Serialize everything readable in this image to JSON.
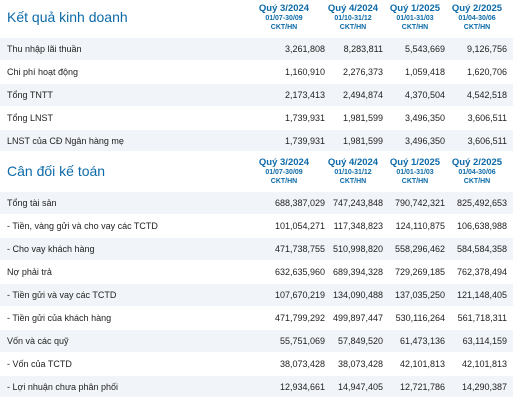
{
  "kqkd": {
    "title": "Kết quả kinh doanh",
    "columns": [
      {
        "quarter": "Quý 3/2024",
        "dates": "01/07-30/09",
        "unit": "CKT/HN"
      },
      {
        "quarter": "Quý 4/2024",
        "dates": "01/10-31/12",
        "unit": "CKT/HN"
      },
      {
        "quarter": "Quý 1/2025",
        "dates": "01/01-31/03",
        "unit": "CKT/HN"
      },
      {
        "quarter": "Quý 2/2025",
        "dates": "01/04-30/06",
        "unit": "CKT/HN"
      }
    ],
    "rows": [
      {
        "label": "Thu nhập lãi thuần",
        "values": [
          "3,261,808",
          "8,283,811",
          "5,543,669",
          "9,126,756"
        ]
      },
      {
        "label": "Chi phí hoạt động",
        "values": [
          "1,160,910",
          "2,276,373",
          "1,059,418",
          "1,620,706"
        ]
      },
      {
        "label": "Tổng TNTT",
        "values": [
          "2,173,413",
          "2,494,874",
          "4,370,504",
          "4,542,518"
        ]
      },
      {
        "label": "Tổng LNST",
        "values": [
          "1,739,931",
          "1,981,599",
          "3,496,350",
          "3,606,511"
        ]
      },
      {
        "label": "LNST của CĐ Ngân hàng mẹ",
        "values": [
          "1,739,931",
          "1,981,599",
          "3,496,350",
          "3,606,511"
        ]
      }
    ]
  },
  "cdkt": {
    "title": "Cân đối kế toán",
    "columns": [
      {
        "quarter": "Quý 3/2024",
        "dates": "01/07-30/09",
        "unit": "CKT/HN"
      },
      {
        "quarter": "Quý 4/2024",
        "dates": "01/10-31/12",
        "unit": "CKT/HN"
      },
      {
        "quarter": "Quý 1/2025",
        "dates": "01/01-31/03",
        "unit": "CKT/HN"
      },
      {
        "quarter": "Quý 2/2025",
        "dates": "01/04-30/06",
        "unit": "CKT/HN"
      }
    ],
    "rows": [
      {
        "label": "Tổng tài sản",
        "values": [
          "688,387,029",
          "747,243,848",
          "790,742,321",
          "825,492,653"
        ]
      },
      {
        "label": "- Tiền, vàng gửi và cho vay các TCTD",
        "values": [
          "101,054,271",
          "117,348,823",
          "124,110,875",
          "106,638,988"
        ]
      },
      {
        "label": "- Cho vay khách hàng",
        "values": [
          "471,738,755",
          "510,998,820",
          "558,296,462",
          "584,584,358"
        ]
      },
      {
        "label": "Nợ phải trả",
        "values": [
          "632,635,960",
          "689,394,328",
          "729,269,185",
          "762,378,494"
        ]
      },
      {
        "label": "- Tiền gửi và vay các TCTD",
        "values": [
          "107,670,219",
          "134,090,488",
          "137,035,250",
          "121,148,405"
        ]
      },
      {
        "label": "- Tiền gửi của khách hàng",
        "values": [
          "471,799,292",
          "499,897,447",
          "530,116,264",
          "561,718,311"
        ]
      },
      {
        "label": "Vốn và các quỹ",
        "values": [
          "55,751,069",
          "57,849,520",
          "61,473,136",
          "63,114,159"
        ]
      },
      {
        "label": "- Vốn của TCTD",
        "values": [
          "38,073,428",
          "38,073,428",
          "42,101,813",
          "42,101,813"
        ]
      },
      {
        "label": "- Lợi nhuận chưa phân phối",
        "values": [
          "12,934,661",
          "14,947,405",
          "12,721,786",
          "14,290,387"
        ]
      }
    ]
  }
}
